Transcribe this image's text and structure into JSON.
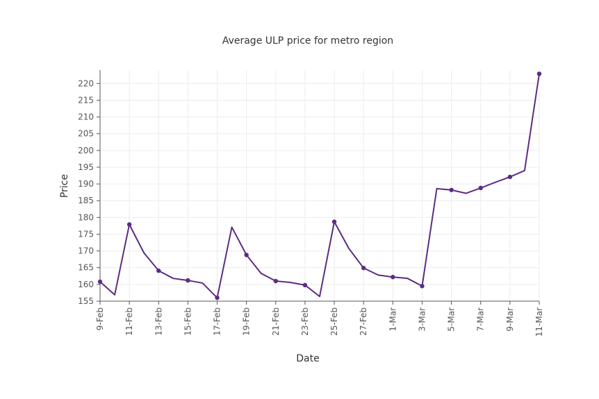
{
  "chart_data": {
    "type": "line",
    "title": "Average ULP price for metro region",
    "x_label": "Date",
    "y_label": "Price",
    "categories": [
      "9-Feb",
      null,
      "11-Feb",
      null,
      "13-Feb",
      null,
      "15-Feb",
      null,
      "17-Feb",
      null,
      "19-Feb",
      null,
      "21-Feb",
      null,
      "23-Feb",
      null,
      "25-Feb",
      null,
      "27-Feb",
      null,
      "1-Mar",
      null,
      "3-Mar",
      null,
      "5-Mar",
      null,
      "7-Mar",
      null,
      "9-Mar",
      null,
      "11-Mar"
    ],
    "series": [
      {
        "name": "Price",
        "color": "#5b2c83",
        "values": [
          160.8,
          156.9,
          177.9,
          169.4,
          164.1,
          161.8,
          161.2,
          160.4,
          156,
          177.1,
          168.8,
          163.3,
          161,
          160.6,
          159.8,
          156.4,
          178.7,
          170.7,
          164.9,
          162.8,
          162.2,
          161.8,
          159.5,
          188.6,
          188.2,
          187.2,
          188.8,
          190.5,
          192.1,
          194,
          222.9
        ]
      }
    ],
    "ylim": [
      155,
      224
    ],
    "yticks": [
      155,
      160,
      165,
      170,
      175,
      180,
      185,
      190,
      195,
      200,
      205,
      210,
      215,
      220
    ],
    "grid": true
  }
}
